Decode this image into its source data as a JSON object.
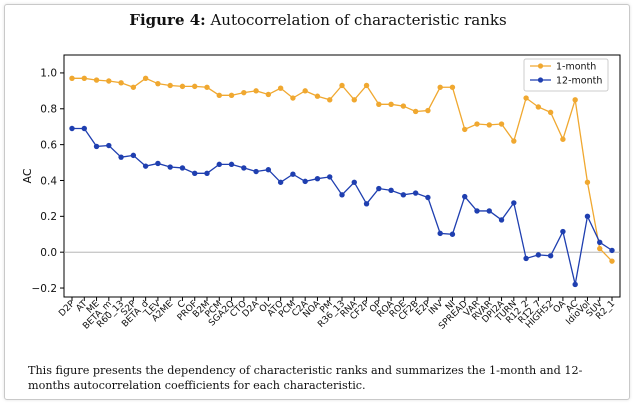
{
  "figure": {
    "label": "Figure 4:",
    "title": "Autocorrelation of characteristic ranks",
    "caption": "This figure presents the dependency of characteristic ranks and summarizes the 1-month and 12-months autocorrelation coefficients for each characteristic."
  },
  "colors": {
    "series_1m": "#f0a830",
    "series_12m": "#1f3fb0",
    "zero_line": "#aaaaaa"
  },
  "chart_data": {
    "type": "line",
    "title": "Figure 4: Autocorrelation of characteristic ranks",
    "xlabel": "",
    "ylabel": "AC",
    "ylim": [
      -0.25,
      1.1
    ],
    "yticks": [
      -0.2,
      0.0,
      0.2,
      0.4,
      0.6,
      0.8,
      1.0
    ],
    "ytick_labels": [
      "−0.2",
      "0.0",
      "0.2",
      "0.4",
      "0.6",
      "0.8",
      "1.0"
    ],
    "grid": false,
    "legend_position": "top-right",
    "categories": [
      "D2P",
      "AT",
      "ME",
      "BETA_m",
      "R60_13",
      "S2P",
      "BETA_d",
      "LEV",
      "A2ME",
      "C",
      "PROF",
      "B2M",
      "PCM",
      "SGA2Q",
      "CTO",
      "D2A",
      "OL",
      "ATO",
      "PCM",
      "C2A",
      "NOA",
      "PM",
      "R36_13",
      "RNA",
      "CF2P",
      "OP",
      "ROA",
      "ROE",
      "CF2B",
      "E2P",
      "INV",
      "NI",
      "SPREAD",
      "VAR",
      "RVAR",
      "DPI2A",
      "TURN",
      "R12_2",
      "R12_7",
      "HIGH52",
      "OA",
      "AC",
      "IdioVol",
      "SUV",
      "R2_1"
    ],
    "series": [
      {
        "name": "1-month",
        "values": [
          0.97,
          0.97,
          0.96,
          0.955,
          0.945,
          0.92,
          0.97,
          0.94,
          0.93,
          0.925,
          0.925,
          0.92,
          0.875,
          0.875,
          0.89,
          0.9,
          0.88,
          0.915,
          0.86,
          0.9,
          0.87,
          0.85,
          0.93,
          0.85,
          0.93,
          0.825,
          0.825,
          0.815,
          0.785,
          0.79,
          0.92,
          0.92,
          0.685,
          0.715,
          0.71,
          0.715,
          0.62,
          0.86,
          0.81,
          0.78,
          0.63,
          0.85,
          0.39,
          0.02,
          -0.05
        ]
      },
      {
        "name": "12-month",
        "values": [
          0.69,
          0.69,
          0.59,
          0.595,
          0.53,
          0.54,
          0.48,
          0.495,
          0.475,
          0.47,
          0.44,
          0.44,
          0.49,
          0.49,
          0.47,
          0.45,
          0.46,
          0.39,
          0.435,
          0.395,
          0.41,
          0.42,
          0.32,
          0.39,
          0.27,
          0.355,
          0.345,
          0.32,
          0.33,
          0.305,
          0.105,
          0.1,
          0.31,
          0.23,
          0.23,
          0.18,
          0.275,
          -0.035,
          -0.015,
          -0.02,
          0.115,
          -0.18,
          0.2,
          0.055,
          0.01
        ]
      }
    ]
  }
}
